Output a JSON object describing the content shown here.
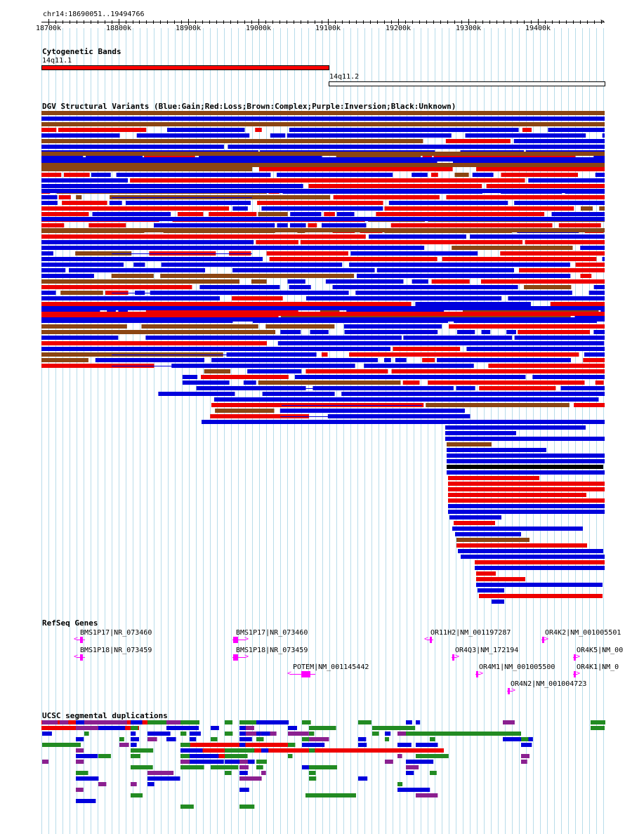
{
  "ruler": {
    "title": "chr14:18690051..19494766",
    "ticks": [
      "18700k",
      "18800k",
      "18900k",
      "19000k",
      "19100k",
      "19200k",
      "19300k",
      "19400k"
    ]
  },
  "cytobands": {
    "title": "Cytogenetic Bands",
    "bands": [
      {
        "name": "14q11.1",
        "start_kb": 18690,
        "end_kb": 19100,
        "color": "#ff0000"
      },
      {
        "name": "14q11.2",
        "start_kb": 19100,
        "end_kb": 19495,
        "color": "#ffffff"
      }
    ]
  },
  "dgv": {
    "title": "DGV Structural Variants (Blue:Gain;Red:Loss;Brown:Complex;Purple:Inversion;Black:Unknown)",
    "colors": {
      "gain": "#0000dd",
      "loss": "#ee0000",
      "complex": "#8b4513",
      "inversion": "#800080",
      "unknown": "#000000"
    }
  },
  "refseq": {
    "title": "RefSeq Genes",
    "gene_color": "#ff00ff",
    "genes": [
      {
        "label": "BMS1P17|NR_073460",
        "strand": "-",
        "start_kb": 18740,
        "end_kb": 18752,
        "row": 0
      },
      {
        "label": "BMS1P18|NR_073459",
        "strand": "-",
        "start_kb": 18740,
        "end_kb": 18752,
        "row": 1
      },
      {
        "label": "BMS1P17|NR_073460",
        "strand": "+",
        "start_kb": 18963,
        "end_kb": 18982,
        "row": 0
      },
      {
        "label": "BMS1P18|NR_073459",
        "strand": "+",
        "start_kb": 18963,
        "end_kb": 18982,
        "row": 1
      },
      {
        "label": "POTEM|NM_001145442",
        "strand": "-",
        "start_kb": 19045,
        "end_kb": 19081,
        "row": 2
      },
      {
        "label": "OR11H2|NM_001197287",
        "strand": "-",
        "start_kb": 19241,
        "end_kb": 19250,
        "row": 0
      },
      {
        "label": "OR4Q3|NM_172194",
        "strand": "+",
        "start_kb": 19276,
        "end_kb": 19283,
        "row": 1
      },
      {
        "label": "OR4M1|NM_001005500",
        "strand": "+",
        "start_kb": 19310,
        "end_kb": 19317,
        "row": 2
      },
      {
        "label": "OR4N2|NM_001004723",
        "strand": "+",
        "start_kb": 19355,
        "end_kb": 19363,
        "row": 3
      },
      {
        "label": "OR4K2|NM_001005501",
        "strand": "+",
        "start_kb": 19405,
        "end_kb": 19411,
        "row": 0
      },
      {
        "label": "OR4K5|NM_00",
        "strand": "+",
        "start_kb": 19450,
        "end_kb": 19456,
        "row": 1
      },
      {
        "label": "OR4K1|NM_0",
        "strand": "+",
        "start_kb": 19450,
        "end_kb": 19456,
        "row": 2
      }
    ]
  },
  "segdups": {
    "title": "UCSC segmental duplications",
    "colors": {
      "red": "#ee0000",
      "blue": "#0000dd",
      "green": "#228b22",
      "purple": "#8b2090"
    }
  }
}
